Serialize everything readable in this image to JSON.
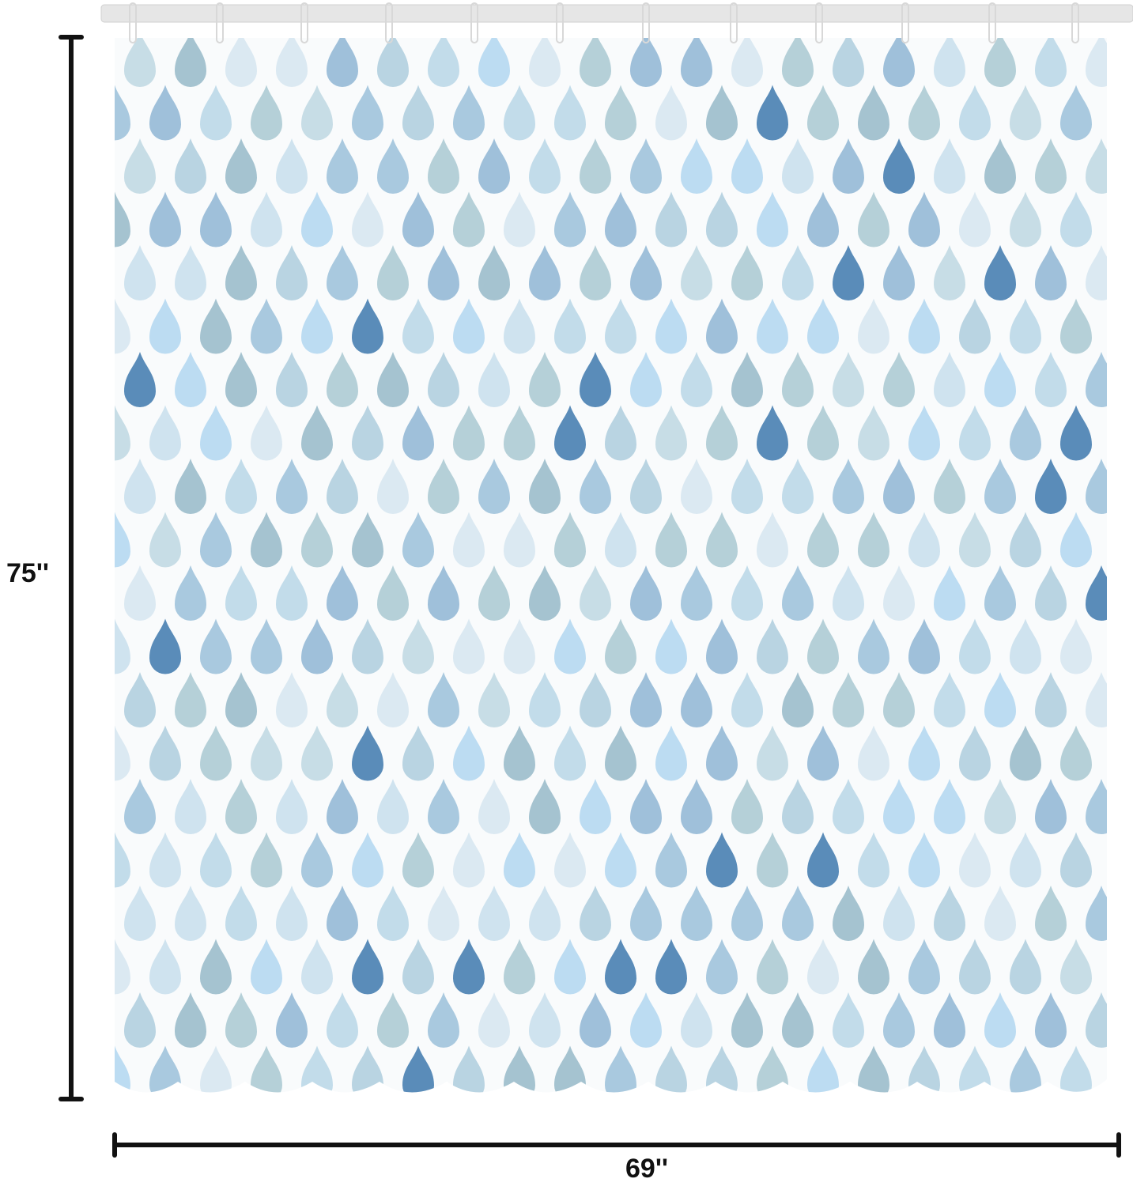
{
  "dimensions": {
    "height": "75''",
    "width": "69''"
  }
}
